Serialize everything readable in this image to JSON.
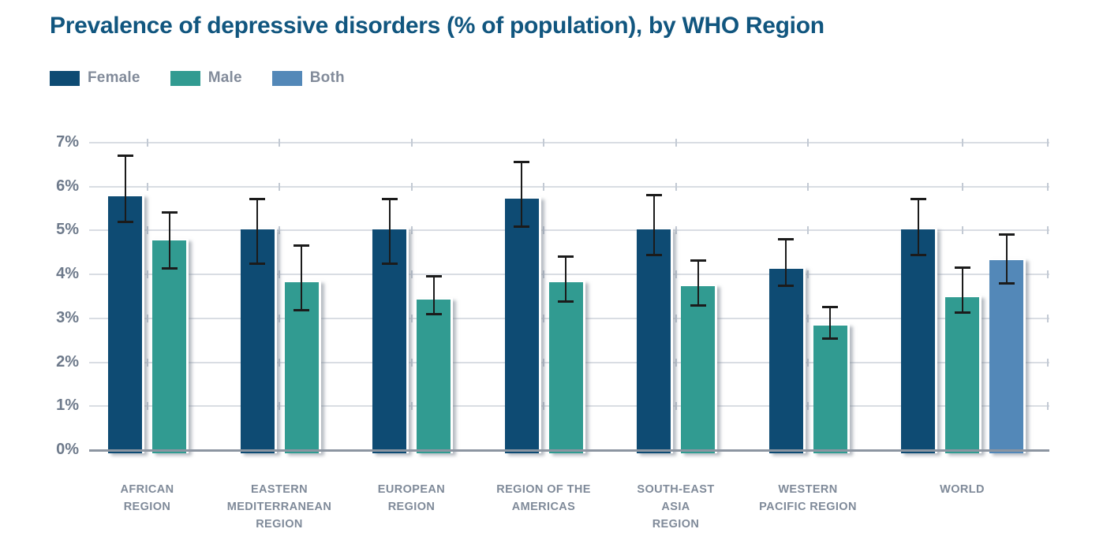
{
  "title": "Prevalence of depressive disorders (% of population), by WHO Region",
  "chart_data": {
    "type": "bar",
    "title": "Prevalence of depressive disorders (% of population), by WHO Region",
    "categories": [
      "AFRICAN\nREGION",
      "EASTERN\nMEDITERRANEAN\nREGION",
      "EUROPEAN\nREGION",
      "REGION OF THE\nAMERICAS",
      "SOUTH-EAST\nASIA\nREGION",
      "WESTERN\nPACIFIC REGION",
      "WORLD"
    ],
    "series": [
      {
        "name": "Female",
        "color": "#0e4b73",
        "values": [
          5.85,
          5.1,
          5.1,
          5.8,
          5.1,
          4.2,
          5.1
        ],
        "ci_low": [
          5.2,
          4.25,
          4.25,
          5.1,
          4.45,
          3.75,
          4.45
        ],
        "ci_high": [
          6.7,
          5.7,
          5.7,
          6.55,
          5.8,
          4.8,
          5.7
        ]
      },
      {
        "name": "Male",
        "color": "#319b91",
        "values": [
          4.85,
          3.9,
          3.5,
          3.9,
          3.8,
          2.9,
          3.55
        ],
        "ci_low": [
          4.15,
          3.2,
          3.1,
          3.4,
          3.3,
          2.55,
          3.15
        ],
        "ci_high": [
          5.4,
          4.65,
          3.95,
          4.4,
          4.3,
          3.25,
          4.15
        ]
      },
      {
        "name": "Both",
        "color": "#5388b8",
        "values": [
          null,
          null,
          null,
          null,
          null,
          null,
          4.4
        ],
        "ci_low": [
          null,
          null,
          null,
          null,
          null,
          null,
          3.8
        ],
        "ci_high": [
          null,
          null,
          null,
          null,
          null,
          null,
          4.9
        ]
      }
    ],
    "ylim": [
      0,
      7
    ],
    "yticks": [
      "0%",
      "1%",
      "2%",
      "3%",
      "4%",
      "5%",
      "6%",
      "7%"
    ],
    "grid": true,
    "error_bars": true,
    "legend_position": "top-left"
  },
  "colors": {
    "title": "#11567f",
    "gridline": "#d9dde3",
    "baseline": "#8c95a1",
    "error_bar": "#1b1b1b",
    "axis_text": "#6e7a8b",
    "category_text": "#7f8a99"
  }
}
